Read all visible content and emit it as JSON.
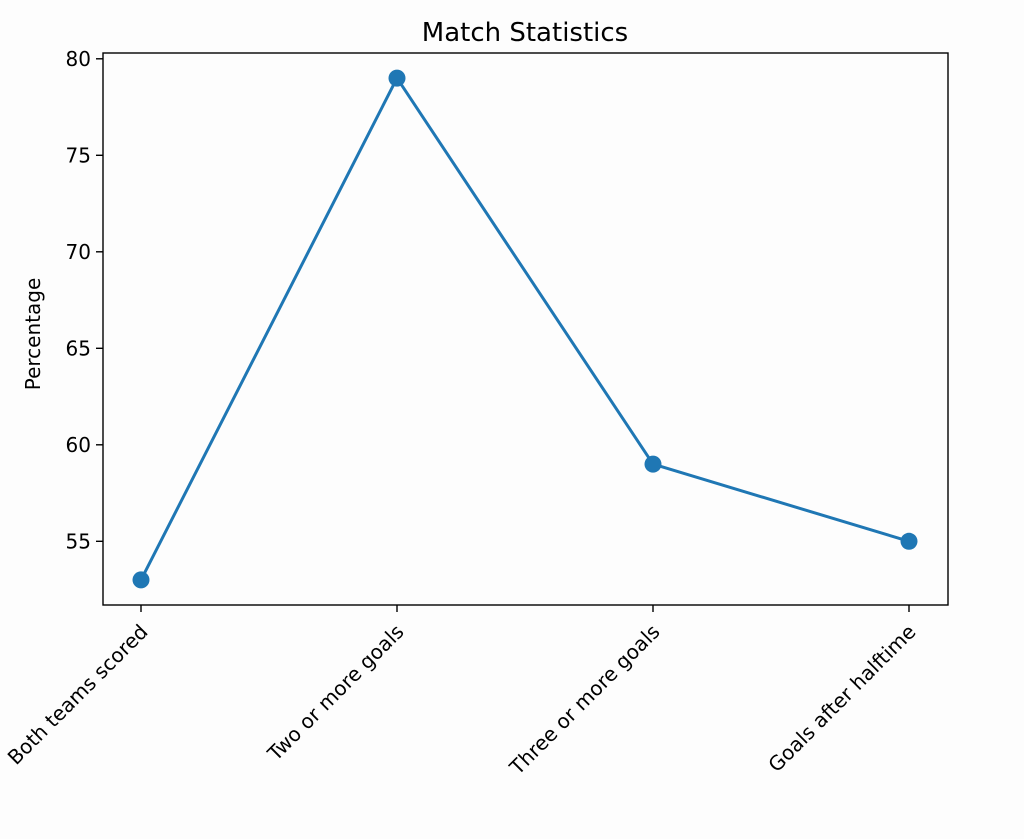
{
  "chart_data": {
    "type": "line",
    "title": "Match Statistics",
    "xlabel": "",
    "ylabel": "Percentage",
    "categories": [
      "Both teams scored",
      "Two or more goals",
      "Three or more goals",
      "Goals after halftime"
    ],
    "series": [
      {
        "values": [
          53,
          79,
          59,
          55
        ],
        "color": "#1f77b4"
      }
    ],
    "ylim": [
      51.7,
      80.3
    ],
    "yticks": [
      55,
      60,
      65,
      70,
      75,
      80
    ],
    "grid": false,
    "legend": "none",
    "x_tick_rotation": 45
  }
}
